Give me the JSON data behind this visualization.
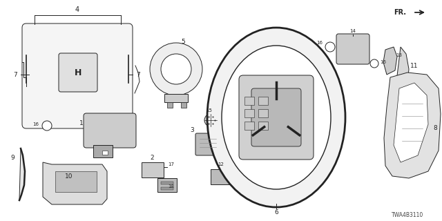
{
  "bg_color": "#ffffff",
  "diagram_code": "TWA4B3110",
  "fr_label": "FR.",
  "label_fontsize": 6.5,
  "dark": "#222222",
  "gray": "#aaaaaa",
  "light": "#dddddd",
  "mid": "#cccccc"
}
